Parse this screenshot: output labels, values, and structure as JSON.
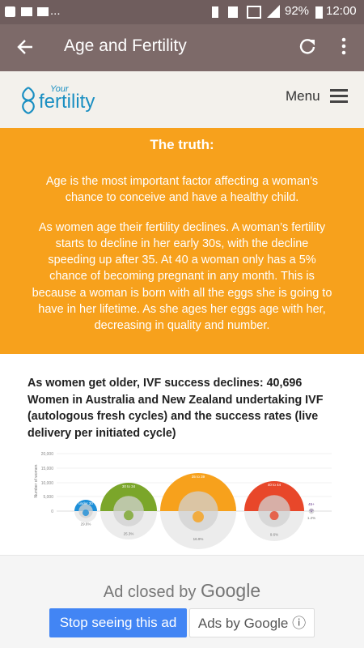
{
  "status_bar": {
    "notifications": "...",
    "battery": "92%",
    "time": "12:00"
  },
  "app_bar": {
    "title": "Age and Fertility"
  },
  "site_header": {
    "logo_small": "Your",
    "logo": "fertility",
    "menu": "Menu"
  },
  "truth": {
    "heading": "The truth:",
    "paragraphs": [
      "Age is the most important factor affecting a woman’s chance to conceive and have a healthy child.",
      "As women age their fertility declines. A woman’s fertility starts to decline in her early 30s, with the decline speeding up after 35. At 40 a woman only has a 5% chance of becoming pregnant in any month. This is because a woman is born with all the eggs she is going to have in her lifetime. As she ages her eggs age with her, decreasing in quality and number."
    ]
  },
  "chart_section": {
    "heading": "As women get older, IVF success declines: 40,696 Women in Australia and New Zealand undertaking IVF (autologous fresh cycles) and the success rates (live delivery per initiated cycle)",
    "y_axis_label": "Number of women",
    "y_ticks": [
      "20,000",
      "15,000",
      "10,000",
      "5,000",
      "0"
    ],
    "groups": [
      {
        "label": "under 30",
        "rate": "29.6%"
      },
      {
        "label": "30 to 34",
        "rate": "25.3%"
      },
      {
        "label": "35 to 39",
        "rate": "16.9%"
      },
      {
        "label": "40 to 44",
        "rate": "9.6%"
      },
      {
        "label": "45+",
        "rate": "1.2%"
      }
    ]
  },
  "ad": {
    "closed_text": "Ad closed by",
    "brand": "Google",
    "stop_button": "Stop seeing this ad",
    "ads_by": "Ads by Google"
  }
}
